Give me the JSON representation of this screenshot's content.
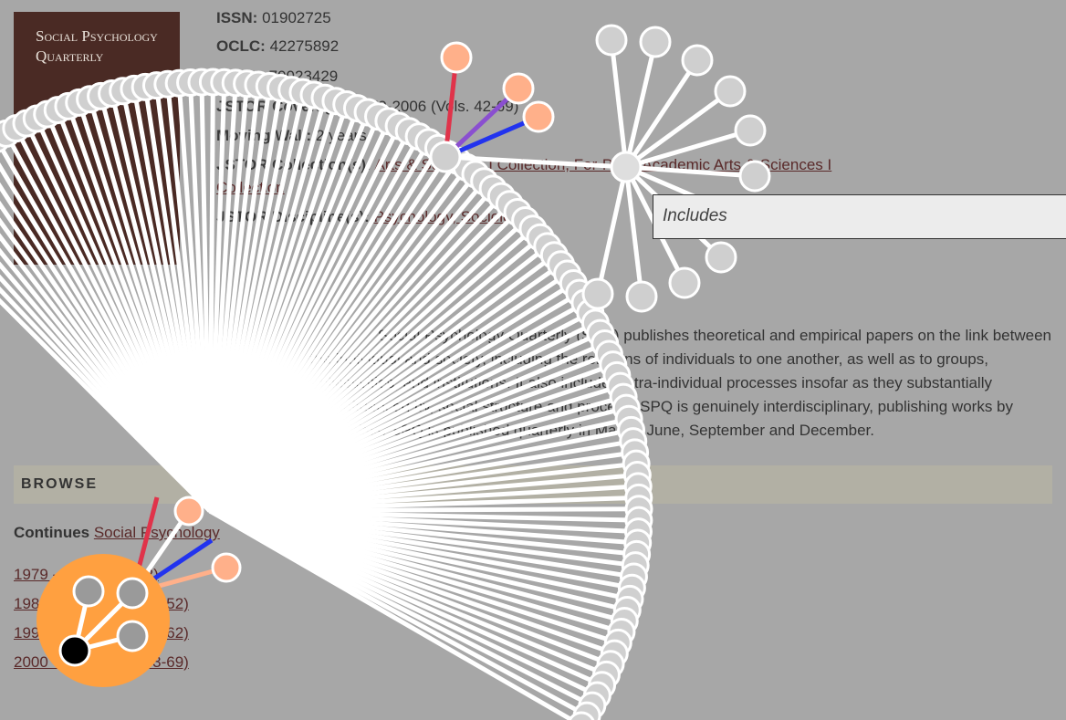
{
  "cover": {
    "title": "Social Psychology Quarterly"
  },
  "details": [
    {
      "label": "ISSN:",
      "value": "01902725"
    },
    {
      "label": "OCLC:",
      "value": "42275892"
    },
    {
      "label": "LCCN:",
      "value": "79023429"
    },
    {
      "label": "JSTOR Coverage:",
      "value": "1979-2006 (Vols. 42-69)"
    },
    {
      "label": "Moving Wall:",
      "value": "2 years"
    },
    {
      "label": "JSTOR Collection(s):",
      "value": "Arts & Sciences I Collection, For-Profit Academic Arts & Sciences I"
    },
    {
      "label": "",
      "value": "Collection"
    },
    {
      "label": "JSTOR Discipline(s):",
      "value": "Psychology, Sociology"
    }
  ],
  "tooltip": "Includes",
  "description": [
    "Social Psychology Quarterly (SPQ) publishes theoretical and empirical papers on the link between",
    "the individual and society, including the relations of individuals to one another, as well as to groups,",
    "collectivities, and institutions. It also includes intra-individual processes insofar as they substantially",
    "influence, or are influenced by, social structure and process. SPQ is genuinely interdisciplinary, publishing works by",
    "both sociologists and psychologists. SPQ is published quarterly in March, June, September and December."
  ],
  "browse": {
    "heading": "BROWSE",
    "continues_label": "Continues",
    "continues_link": "Social Psychology",
    "issues": [
      "1979 - 1979 (Vol. 42)",
      "1980 - 1989 (Vols. 43-52)",
      "1990 - 1999 (Vols. 53-62)",
      "2000 - 2006 (Vols. 63-69)"
    ]
  }
}
